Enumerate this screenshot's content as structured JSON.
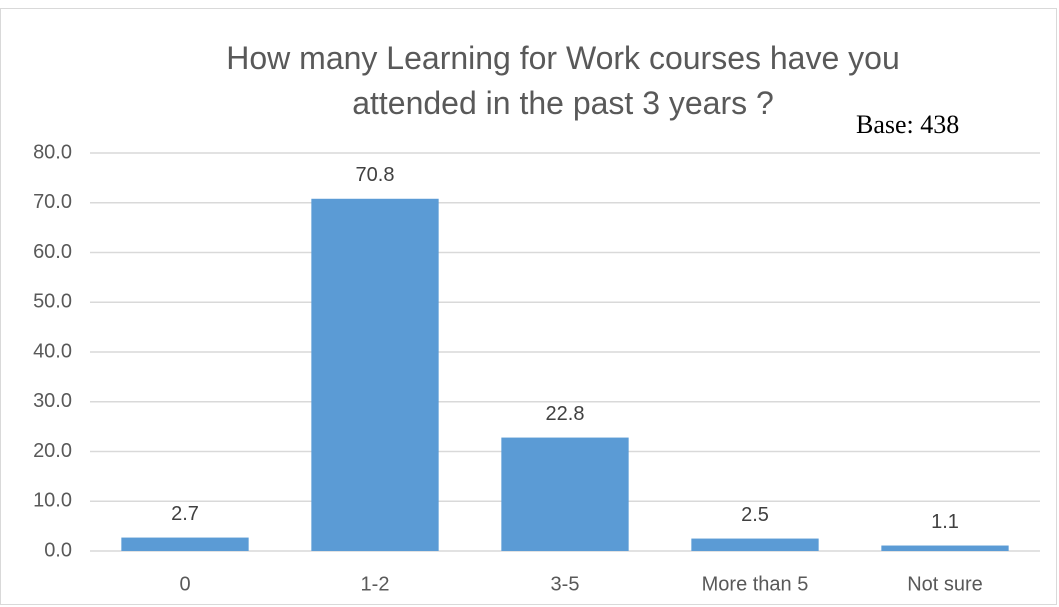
{
  "chart_data": {
    "type": "bar",
    "title": "How many Learning for Work courses have you attended in the past 3 years ?",
    "annotation": "Base: 438",
    "categories": [
      "0",
      "1-2",
      "3-5",
      "More than 5",
      "Not sure"
    ],
    "values": [
      2.7,
      70.8,
      22.8,
      2.5,
      1.1
    ],
    "color": "#5b9bd5",
    "ylim": [
      0,
      80
    ],
    "yticks": [
      {
        "value": 0,
        "label": "0.0"
      },
      {
        "value": 10,
        "label": "10.0"
      },
      {
        "value": 20,
        "label": "20.0"
      },
      {
        "value": 30,
        "label": "30.0"
      },
      {
        "value": 40,
        "label": "40.0"
      },
      {
        "value": 50,
        "label": "50.0"
      },
      {
        "value": 60,
        "label": "60.0"
      },
      {
        "value": 70,
        "label": "70.0"
      },
      {
        "value": 80,
        "label": "80.0"
      }
    ],
    "grid": true
  }
}
